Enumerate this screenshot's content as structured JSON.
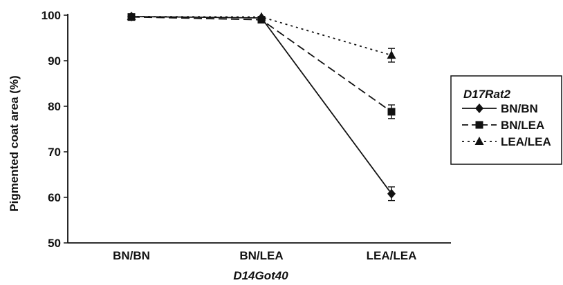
{
  "chart_data": {
    "type": "line",
    "categories": [
      "BN/BN",
      "BN/LEA",
      "LEA/LEA"
    ],
    "xlabel": "D14Got40",
    "ylabel": "Pigmented coat area (%)",
    "ylim": [
      50,
      100
    ],
    "yticks": [
      50,
      60,
      70,
      80,
      90,
      100
    ],
    "grid": false,
    "legend_position": "right",
    "legend_title": "D17Rat2",
    "series": [
      {
        "name": "BN/BN",
        "values": [
          99.7,
          99.4,
          60.8
        ],
        "errors": [
          0.3,
          0.4,
          1.5
        ],
        "marker": "diamond",
        "line_style": "solid",
        "color": "#111111"
      },
      {
        "name": "BN/LEA",
        "values": [
          99.6,
          99.0,
          78.8
        ],
        "errors": [
          0.3,
          0.4,
          1.5
        ],
        "marker": "square",
        "line_style": "dashed",
        "color": "#111111"
      },
      {
        "name": "LEA/LEA",
        "values": [
          99.7,
          99.6,
          91.2
        ],
        "errors": [
          0.3,
          0.4,
          1.5
        ],
        "marker": "triangle",
        "line_style": "dotted",
        "color": "#111111"
      }
    ]
  }
}
